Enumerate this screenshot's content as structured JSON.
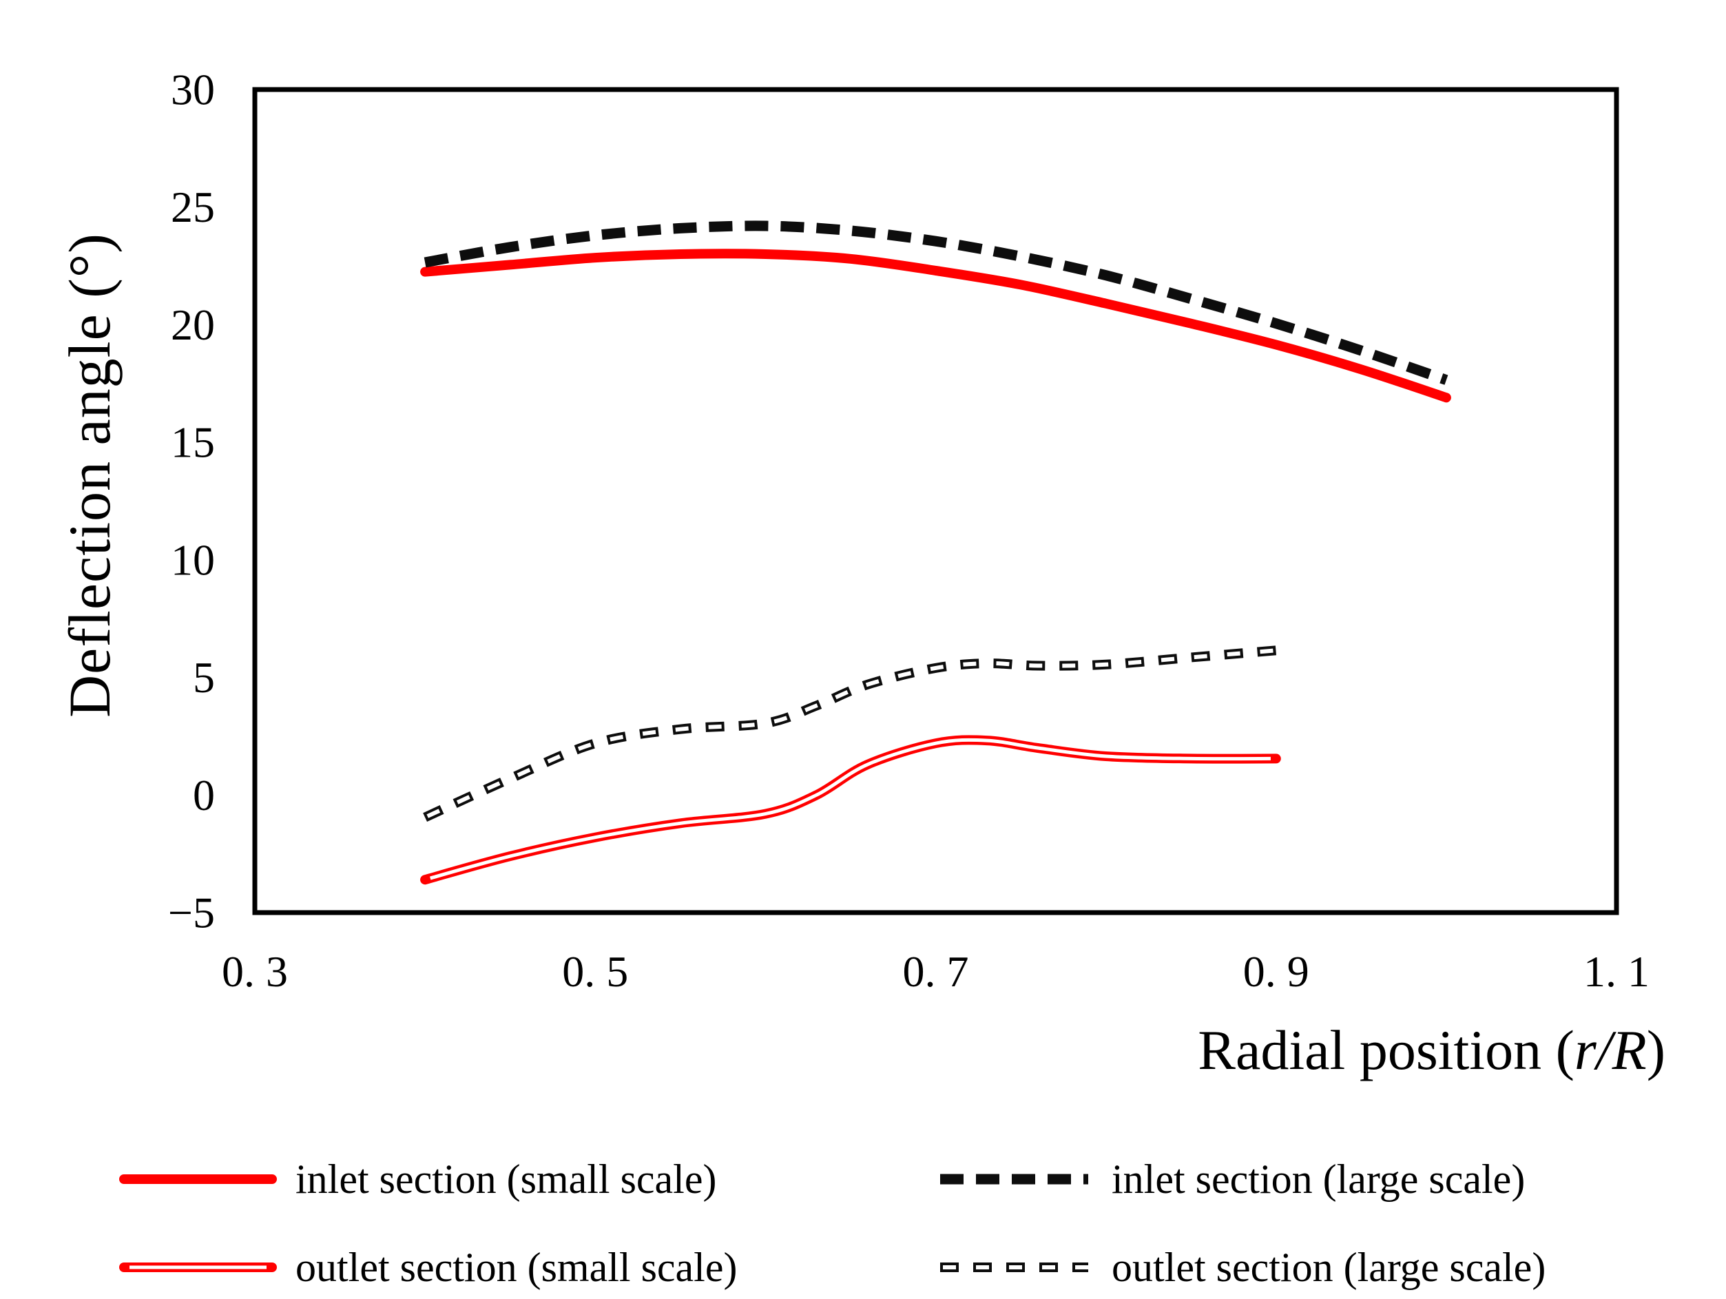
{
  "chart_data": {
    "type": "line",
    "title": "",
    "xlabel": "Radial position (r/R)",
    "xlabel_prefix": "Radial position (",
    "xlabel_italic": "r/R",
    "xlabel_suffix": ")",
    "ylabel": "Deflection angle (°)",
    "xlim": [
      0.3,
      1.1
    ],
    "ylim": [
      -5,
      30
    ],
    "grid": false,
    "legend_position": "below-two-columns",
    "background": "#ffffff",
    "border_color": "#000000",
    "x_ticks": {
      "values": [
        0.3,
        0.5,
        0.7,
        0.9,
        1.1
      ],
      "labels": [
        "0. 3",
        "0. 5",
        "0. 7",
        "0. 9",
        "1. 1"
      ]
    },
    "y_ticks": {
      "values": [
        30,
        25,
        20,
        15,
        10,
        5,
        0,
        -5
      ],
      "labels": [
        "30",
        "25",
        "20",
        "15",
        "10",
        "5",
        "0",
        "−5"
      ]
    },
    "series": [
      {
        "name": "inlet section (small scale)",
        "style": "solid-thick",
        "color": "#ff0000",
        "x": [
          0.4,
          0.45,
          0.5,
          0.55,
          0.6,
          0.65,
          0.7,
          0.75,
          0.8,
          0.85,
          0.9,
          0.95,
          1.0
        ],
        "y": [
          22.25,
          22.55,
          22.85,
          23.0,
          23.0,
          22.8,
          22.3,
          21.7,
          20.9,
          20.05,
          19.15,
          18.1,
          16.9
        ]
      },
      {
        "name": "inlet section (large scale)",
        "style": "dashed-thick",
        "color": "#0d0d0d",
        "x": [
          0.4,
          0.45,
          0.5,
          0.55,
          0.6,
          0.65,
          0.7,
          0.75,
          0.8,
          0.85,
          0.9,
          0.95,
          1.0
        ],
        "y": [
          22.65,
          23.3,
          23.8,
          24.1,
          24.2,
          24.0,
          23.55,
          22.9,
          22.1,
          21.1,
          20.05,
          18.9,
          17.65
        ]
      },
      {
        "name": "outlet section (small scale)",
        "style": "double-line",
        "color": "#ff0000",
        "x": [
          0.4,
          0.45,
          0.5,
          0.55,
          0.6,
          0.63,
          0.66,
          0.7,
          0.73,
          0.76,
          0.8,
          0.85,
          0.9
        ],
        "y": [
          -3.6,
          -2.6,
          -1.8,
          -1.2,
          -0.8,
          0.0,
          1.3,
          2.2,
          2.32,
          2.0,
          1.65,
          1.55,
          1.55
        ]
      },
      {
        "name": "outlet section (large scale)",
        "style": "dashed-hollow",
        "color": "#0d0d0d",
        "x": [
          0.4,
          0.45,
          0.5,
          0.55,
          0.6,
          0.63,
          0.66,
          0.7,
          0.73,
          0.76,
          0.8,
          0.85,
          0.9
        ],
        "y": [
          -0.95,
          0.7,
          2.2,
          2.8,
          3.05,
          3.8,
          4.7,
          5.4,
          5.6,
          5.5,
          5.55,
          5.85,
          6.15
        ]
      }
    ]
  }
}
